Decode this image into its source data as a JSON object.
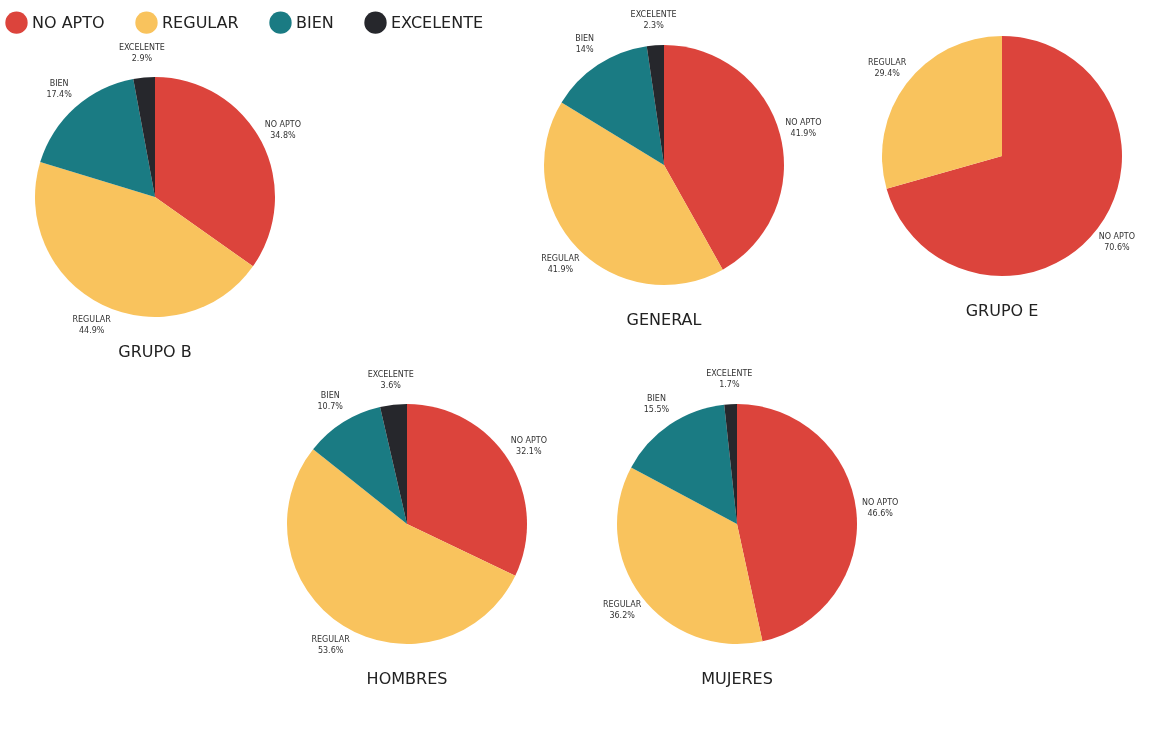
{
  "chart_data": [
    {
      "type": "pie",
      "title": "GRUPO B",
      "legend": "top",
      "categories": [
        "NO APTO",
        "REGULAR",
        "BIEN",
        "EXCELENTE"
      ],
      "values": [
        34.8,
        44.9,
        17.4,
        2.9
      ],
      "value_labels": [
        "34.8%",
        "44.9%",
        "17.4%",
        "2.9%"
      ],
      "colors": [
        "#dc443c",
        "#f9c35d",
        "#1a7b83",
        "#26272c"
      ]
    },
    {
      "type": "pie",
      "title": "GENERAL",
      "categories": [
        "NO APTO",
        "REGULAR",
        "BIEN",
        "EXCELENTE"
      ],
      "values": [
        41.9,
        41.9,
        14,
        2.3
      ],
      "value_labels": [
        "41.9%",
        "41.9%",
        "14%",
        "2.3%"
      ],
      "colors": [
        "#dc443c",
        "#f9c35d",
        "#1a7b83",
        "#26272c"
      ]
    },
    {
      "type": "pie",
      "title": "GRUPO E",
      "categories": [
        "NO APTO",
        "REGULAR"
      ],
      "values": [
        70.6,
        29.4
      ],
      "value_labels": [
        "70.6%",
        "29.4%"
      ],
      "colors": [
        "#dc443c",
        "#f9c35d"
      ]
    },
    {
      "type": "pie",
      "title": "HOMBRES",
      "categories": [
        "NO APTO",
        "REGULAR",
        "BIEN",
        "EXCELENTE"
      ],
      "values": [
        32.1,
        53.6,
        10.7,
        3.6
      ],
      "value_labels": [
        "32.1%",
        "53.6%",
        "10.7%",
        "3.6%"
      ],
      "colors": [
        "#dc443c",
        "#f9c35d",
        "#1a7b83",
        "#26272c"
      ]
    },
    {
      "type": "pie",
      "title": "MUJERES",
      "categories": [
        "NO APTO",
        "REGULAR",
        "BIEN",
        "EXCELENTE"
      ],
      "values": [
        46.6,
        36.2,
        15.5,
        1.7
      ],
      "value_labels": [
        "46.6%",
        "36.2%",
        "15.5%",
        "1.7%"
      ],
      "colors": [
        "#dc443c",
        "#f9c35d",
        "#1a7b83",
        "#26272c"
      ]
    }
  ]
}
